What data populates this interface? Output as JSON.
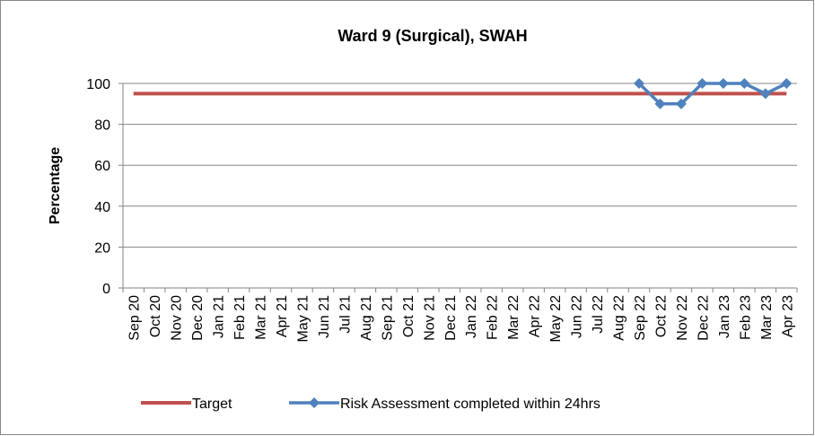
{
  "chart_data": {
    "type": "line",
    "title": "Ward 9 (Surgical), SWAH",
    "ylabel": "Percentage",
    "categories": [
      "Sep 20",
      "Oct 20",
      "Nov 20",
      "Dec 20",
      "Jan 21",
      "Feb 21",
      "Mar 21",
      "Apr 21",
      "May 21",
      "Jun 21",
      "Jul 21",
      "Aug 21",
      "Sep 21",
      "Oct 21",
      "Nov 21",
      "Dec 21",
      "Jan 22",
      "Feb 22",
      "Mar 22",
      "Apr 22",
      "May 22",
      "Jun 22",
      "Jul 22",
      "Aug 22",
      "Sep 22",
      "Oct 22",
      "Nov 22",
      "Dec 22",
      "Jan 23",
      "Feb 23",
      "Mar 23",
      "Apr 23"
    ],
    "series": [
      {
        "name": "Target",
        "color": "#c0504d",
        "values": [
          95,
          95,
          95,
          95,
          95,
          95,
          95,
          95,
          95,
          95,
          95,
          95,
          95,
          95,
          95,
          95,
          95,
          95,
          95,
          95,
          95,
          95,
          95,
          95,
          95,
          95,
          95,
          95,
          95,
          95,
          95,
          95
        ]
      },
      {
        "name": "Risk Assessment completed within 24hrs",
        "color": "#4f81bd",
        "values": [
          null,
          null,
          null,
          null,
          null,
          null,
          null,
          null,
          null,
          null,
          null,
          null,
          null,
          null,
          null,
          null,
          null,
          null,
          null,
          null,
          null,
          null,
          null,
          null,
          100,
          90,
          90,
          100,
          100,
          100,
          95,
          100
        ],
        "markers": true
      }
    ],
    "ylim": [
      0,
      100
    ],
    "yticks": [
      0,
      20,
      40,
      60,
      80,
      100
    ],
    "grid": true,
    "legend": "bottom"
  }
}
